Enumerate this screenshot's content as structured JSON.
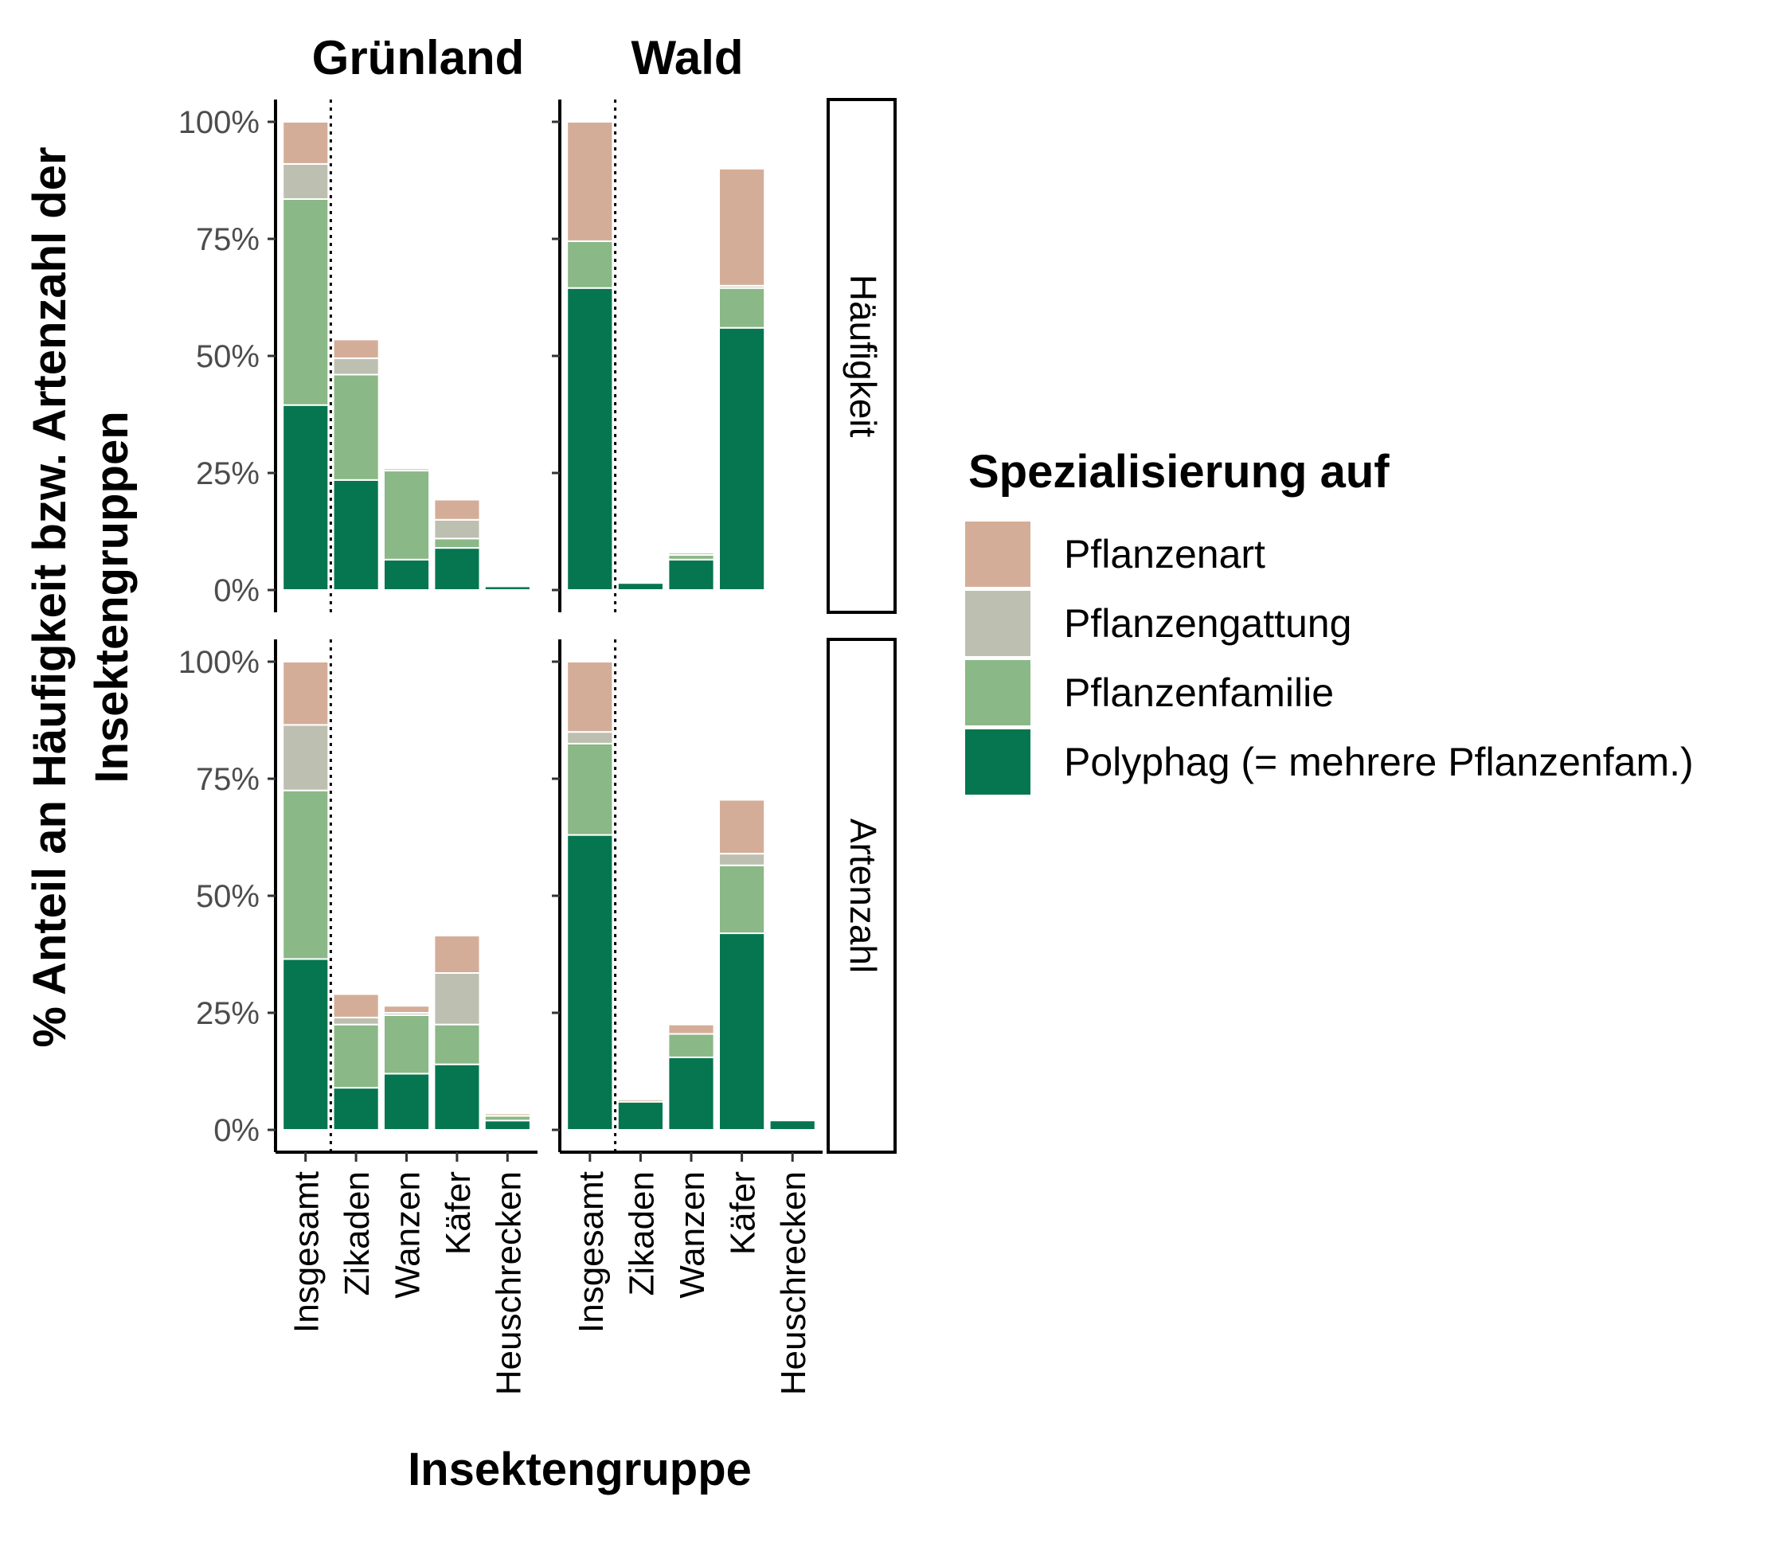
{
  "chart_data": {
    "type": "bar",
    "stacked": true,
    "facets": {
      "columns": [
        "Grünland",
        "Wald"
      ],
      "rows": [
        "Häufigkeit",
        "Artenzahl"
      ]
    },
    "categories": [
      "Insgesamt",
      "Zikaden",
      "Wanzen",
      "Käfer",
      "Heuschrecken"
    ],
    "xlabel": "Insektengruppe",
    "ylabel": [
      "% Anteil an Häufigkeit bzw. Artenzahl der",
      "Insektengruppen"
    ],
    "yticks": [
      "0%",
      "25%",
      "50%",
      "75%",
      "100%"
    ],
    "ylim": [
      0,
      100
    ],
    "legend": {
      "title": "Spezialisierung auf",
      "position": "right",
      "entries": [
        {
          "name": "Pflanzenart",
          "color": "#d4ad98"
        },
        {
          "name": "Pflanzengattung",
          "color": "#bdc0b0"
        },
        {
          "name": "Pflanzenfamilie",
          "color": "#8ab886"
        },
        {
          "name": "Polyphag (= mehrere Pflanzenfam.)",
          "color": "#067650"
        }
      ]
    },
    "panels": [
      {
        "column": "Grünland",
        "row": "Häufigkeit",
        "series": [
          {
            "name": "Polyphag (= mehrere Pflanzenfam.)",
            "values": [
              39.5,
              23.5,
              6.5,
              9,
              0.8
            ]
          },
          {
            "name": "Pflanzenfamilie",
            "values": [
              44,
              22.5,
              19,
              2,
              0
            ]
          },
          {
            "name": "Pflanzengattung",
            "values": [
              7.5,
              3.5,
              0.5,
              4,
              0
            ]
          },
          {
            "name": "Pflanzenart",
            "values": [
              9,
              4,
              0.3,
              4.3,
              0.2
            ]
          }
        ]
      },
      {
        "column": "Wald",
        "row": "Häufigkeit",
        "series": [
          {
            "name": "Polyphag (= mehrere Pflanzenfam.)",
            "values": [
              64.5,
              1.5,
              6.5,
              56,
              0.3
            ]
          },
          {
            "name": "Pflanzenfamilie",
            "values": [
              10,
              0,
              1,
              8.5,
              0
            ]
          },
          {
            "name": "Pflanzengattung",
            "values": [
              0,
              0,
              0.5,
              0.5,
              0
            ]
          },
          {
            "name": "Pflanzenart",
            "values": [
              25.5,
              0,
              0.3,
              25,
              0
            ]
          }
        ]
      },
      {
        "column": "Grünland",
        "row": "Artenzahl",
        "series": [
          {
            "name": "Polyphag (= mehrere Pflanzenfam.)",
            "values": [
              36.5,
              9,
              12,
              14,
              2
            ]
          },
          {
            "name": "Pflanzenfamilie",
            "values": [
              36,
              13.5,
              12.5,
              8.5,
              1
            ]
          },
          {
            "name": "Pflanzengattung",
            "values": [
              14,
              1.5,
              0.5,
              11,
              0
            ]
          },
          {
            "name": "Pflanzenart",
            "values": [
              13.5,
              5,
              1.5,
              8,
              0.5
            ]
          }
        ]
      },
      {
        "column": "Wald",
        "row": "Artenzahl",
        "series": [
          {
            "name": "Polyphag (= mehrere Pflanzenfam.)",
            "values": [
              63,
              6,
              15.5,
              42,
              2
            ]
          },
          {
            "name": "Pflanzenfamilie",
            "values": [
              19.5,
              0,
              5,
              14.5,
              0
            ]
          },
          {
            "name": "Pflanzengattung",
            "values": [
              2.5,
              0,
              0,
              2.5,
              0
            ]
          },
          {
            "name": "Pflanzenart",
            "values": [
              15,
              0.5,
              2,
              11.5,
              0
            ]
          }
        ]
      }
    ]
  }
}
